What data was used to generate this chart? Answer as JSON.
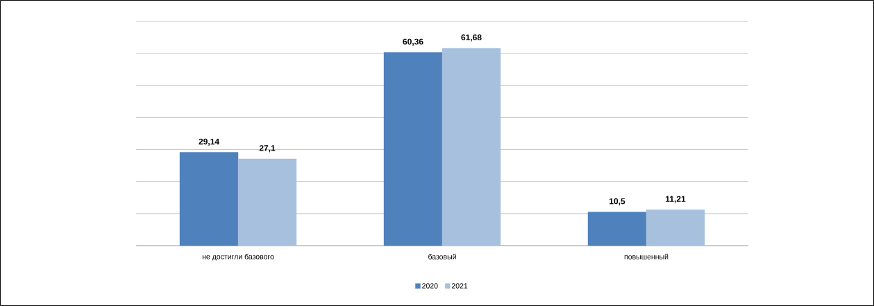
{
  "chart_data": {
    "type": "bar",
    "categories": [
      "не достигли базового",
      "базовый",
      "повышенный"
    ],
    "series": [
      {
        "name": "2020",
        "color": "#4f81bd",
        "values": [
          29.14,
          60.36,
          10.5
        ],
        "value_labels": [
          "29,14",
          "60,36",
          "10,5"
        ]
      },
      {
        "name": "2021",
        "color": "#a7c0de",
        "values": [
          27.1,
          61.68,
          11.21
        ],
        "value_labels": [
          "27,1",
          "61,68",
          "11,21"
        ]
      }
    ],
    "ylim": [
      0,
      70
    ],
    "yticks": [
      {
        "value": 0,
        "label": null
      },
      {
        "value": 10,
        "label": null
      },
      {
        "value": 20,
        "label": null
      },
      {
        "value": 30,
        "label": null
      },
      {
        "value": 40,
        "label": null
      },
      {
        "value": 50,
        "label": null
      },
      {
        "value": 60,
        "label": null
      },
      {
        "value": 70,
        "label": null
      }
    ],
    "tick_labels": "x",
    "grid": "y",
    "legend": "bottom"
  }
}
